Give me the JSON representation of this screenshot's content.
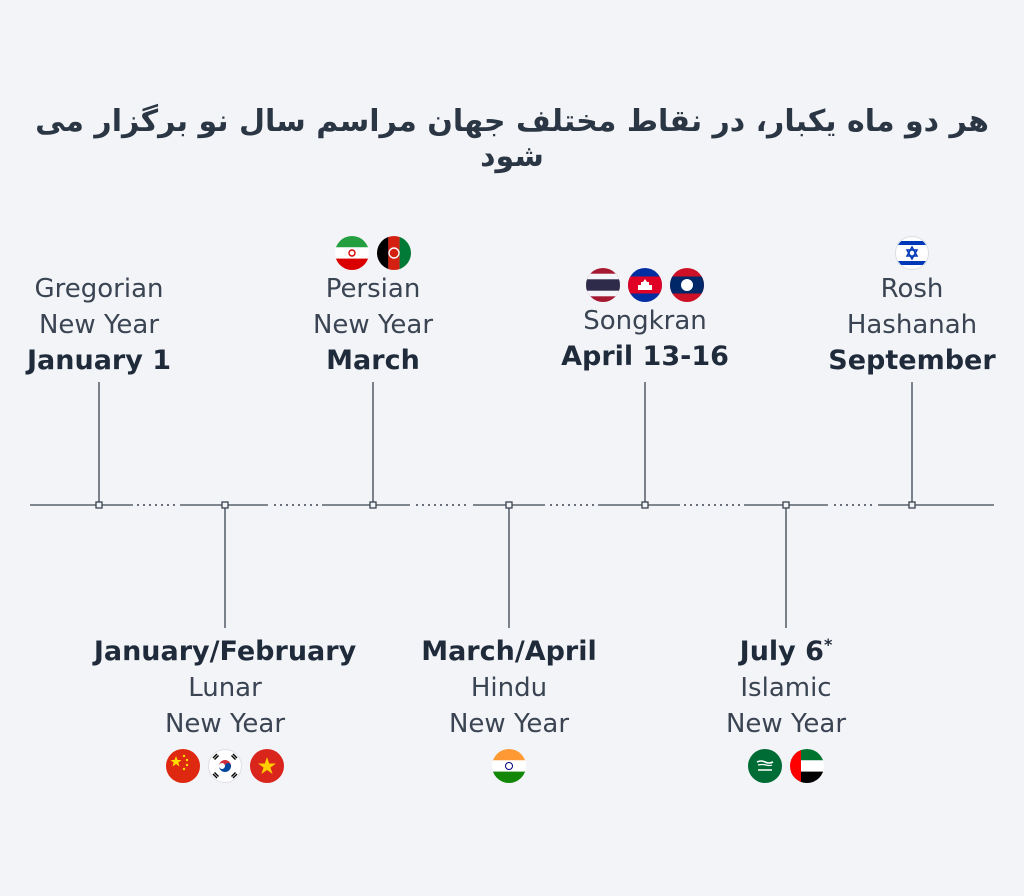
{
  "title": "هر دو ماه یکبار، در نقاط مختلف جهان مراسم سال نو برگزار می شود",
  "events": [
    {
      "id": "gregorian",
      "line1": "Gregorian",
      "line2": "New Year",
      "date": "January 1",
      "flags": []
    },
    {
      "id": "lunar",
      "line1": "Lunar",
      "line2": "New Year",
      "date": "January/February",
      "flags": [
        "china-flag-icon",
        "south-korea-flag-icon",
        "vietnam-flag-icon"
      ]
    },
    {
      "id": "persian",
      "line1": "Persian",
      "line2": "New Year",
      "date": "March",
      "flags": [
        "iran-flag-icon",
        "afghanistan-flag-icon"
      ]
    },
    {
      "id": "hindu",
      "line1": "Hindu",
      "line2": "New Year",
      "date": "March/April",
      "flags": [
        "india-flag-icon"
      ]
    },
    {
      "id": "songkran",
      "line1": "Songkran",
      "line2": "",
      "date": "April 13-16",
      "flags": [
        "thailand-flag-icon",
        "cambodia-flag-icon",
        "laos-flag-icon"
      ]
    },
    {
      "id": "islamic",
      "line1": "Islamic",
      "line2": "New Year",
      "date": "July 6",
      "date_mark": "*",
      "flags": [
        "saudi-arabia-flag-icon",
        "uae-flag-icon"
      ]
    },
    {
      "id": "rosh",
      "line1": "Rosh",
      "line2": "Hashanah",
      "date": "September",
      "flags": [
        "israel-flag-icon"
      ]
    }
  ],
  "colors": {
    "background": "#f3f4f7",
    "line": "#3b4350",
    "text": "#2c3644"
  }
}
